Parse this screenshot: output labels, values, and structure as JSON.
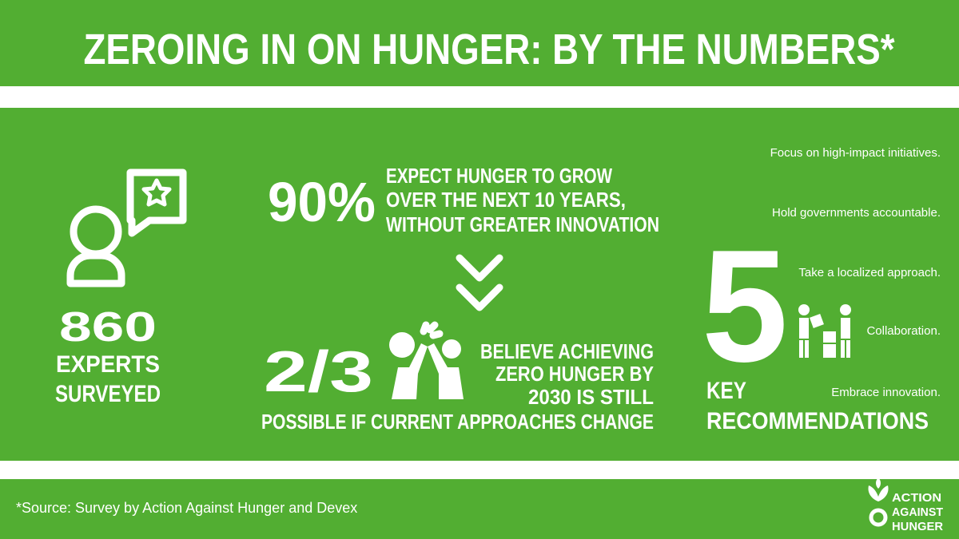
{
  "header": {
    "title": "ZEROING IN ON HUNGER: BY THE NUMBERS*"
  },
  "survey": {
    "count": "860",
    "label_lines": [
      "EXPERTS",
      "SURVEYED"
    ]
  },
  "expectation": {
    "figure": "90%",
    "lines": [
      "EXPECT HUNGER TO GROW",
      "OVER THE NEXT 10 YEARS,",
      "WITHOUT GREATER INNOVATION"
    ]
  },
  "belief": {
    "figure": "2/3",
    "lines": [
      "BELIEVE ACHIEVING",
      "ZERO HUNGER BY",
      "2030 IS STILL",
      "POSSIBLE IF CURRENT APPROACHES CHANGE"
    ]
  },
  "recommendations": {
    "count": "5",
    "label_lines": [
      "KEY",
      "RECOMMENDATIONS"
    ],
    "items": [
      "Focus on high-impact initiatives.",
      "Hold governments accountable.",
      "Take a localized approach.",
      "Collaboration.",
      "Embrace innovation."
    ]
  },
  "footer": {
    "source": "*Source: Survey by Action Against Hunger and Devex",
    "logo_lines": [
      "ACTION",
      "AGAINST",
      "HUNGER"
    ]
  }
}
